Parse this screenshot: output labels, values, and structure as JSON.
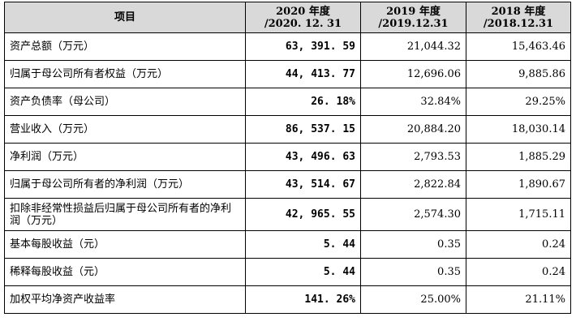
{
  "table": {
    "headers": [
      {
        "line1": "项目",
        "line2": ""
      },
      {
        "line1": "2020 年度",
        "line2": "/2020. 12. 31"
      },
      {
        "line1": "2019 年度",
        "line2": "/2019.12.31"
      },
      {
        "line1": "2018 年度",
        "line2": "/2018.12.31"
      }
    ],
    "rows": [
      {
        "label": "资产总额（万元）",
        "v2020": "63, 391. 59",
        "v2019": "21,044.32",
        "v2018": "15,463.46"
      },
      {
        "label": "归属于母公司所有者权益（万元）",
        "v2020": "44, 413. 77",
        "v2019": "12,696.06",
        "v2018": "9,885.86"
      },
      {
        "label": "资产负债率（母公司）",
        "v2020": "26. 18%",
        "v2019": "32.84%",
        "v2018": "29.25%"
      },
      {
        "label": "营业收入（万元）",
        "v2020": "86, 537. 15",
        "v2019": "20,884.20",
        "v2018": "18,030.14"
      },
      {
        "label": "净利润（万元）",
        "v2020": "43, 496. 63",
        "v2019": "2,793.53",
        "v2018": "1,885.29"
      },
      {
        "label": "归属于母公司所有者的净利润（万元）",
        "v2020": "43, 514. 67",
        "v2019": "2,822.84",
        "v2018": "1,890.67"
      },
      {
        "label": "扣除非经常性损益后归属于母公司所有者的净利润（万元）",
        "v2020": "42, 965. 55",
        "v2019": "2,574.30",
        "v2018": "1,715.11"
      },
      {
        "label": "基本每股收益（元）",
        "v2020": "5. 44",
        "v2019": "0.35",
        "v2018": "0.24"
      },
      {
        "label": "稀释每股收益（元）",
        "v2020": "5. 44",
        "v2019": "0.35",
        "v2018": "0.24"
      },
      {
        "label": "加权平均净资产收益率",
        "v2020": "141. 26%",
        "v2019": "25.00%",
        "v2018": "21.11%"
      }
    ]
  },
  "colors": {
    "header_bg": "#d9d9d9",
    "border": "#000000"
  }
}
